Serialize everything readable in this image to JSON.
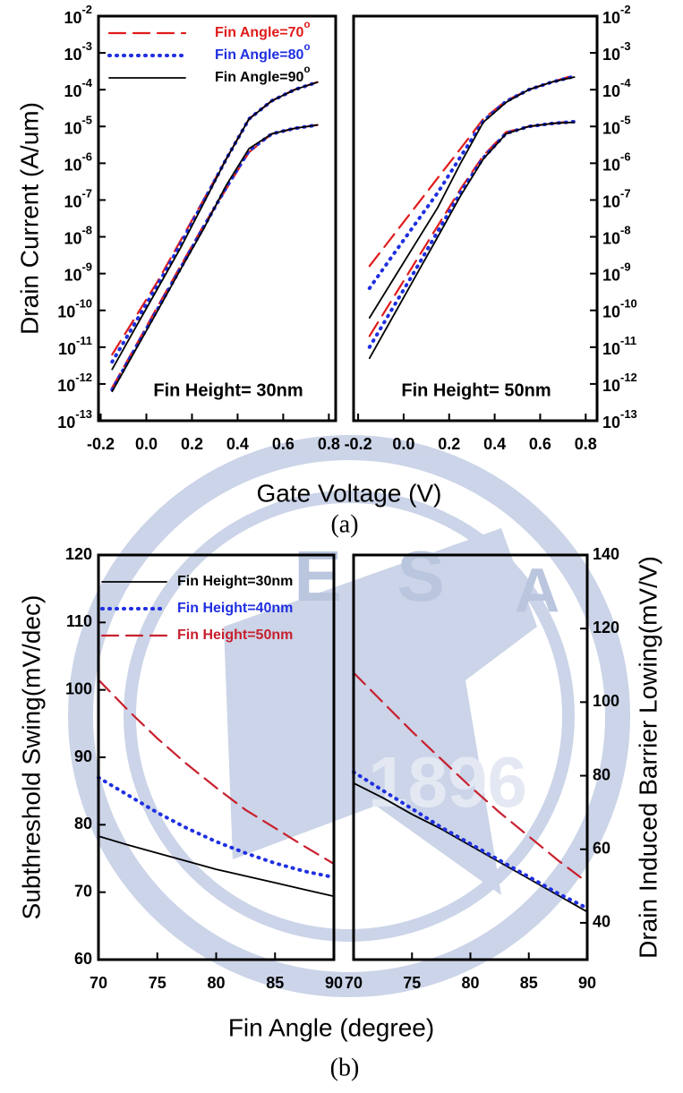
{
  "watermark": {
    "letters": [
      "E",
      "S",
      "A"
    ],
    "year": "1896"
  },
  "chart_data": [
    {
      "type": "line",
      "log_y": true,
      "ylabel": "Drain Current (A/um)",
      "xlabel": "Gate Voltage (V)",
      "caption": "(a)",
      "annotation": "Fin Height= 30nm",
      "legend": true,
      "xlim": [
        -0.21,
        0.83
      ],
      "xticks": [
        -0.2,
        {
          "value": 0,
          "label": "0.0"
        },
        0.2,
        0.4,
        0.6,
        0.8
      ],
      "ylim": [
        1e-13,
        0.01
      ],
      "yticks": [
        {
          "value": 0.01,
          "label": "10-2"
        },
        {
          "value": 0.001,
          "label": "10-3"
        },
        {
          "value": 0.0001,
          "label": "10-4"
        },
        {
          "value": 1e-05,
          "label": "10-5"
        },
        {
          "value": 1e-06,
          "label": "10-6"
        },
        {
          "value": 1e-07,
          "label": "10-7"
        },
        {
          "value": 1e-08,
          "label": "10-8"
        },
        {
          "value": 1e-09,
          "label": "10-9"
        },
        {
          "value": 1e-10,
          "label": "10-10"
        },
        {
          "value": 1e-11,
          "label": "10-11"
        },
        {
          "value": 1e-12,
          "label": "10-12"
        },
        {
          "value": 1e-13,
          "label": "10-13"
        }
      ],
      "x": [
        -0.15,
        -0.05,
        0.05,
        0.15,
        0.25,
        0.35,
        0.45,
        0.55,
        0.65,
        0.75
      ],
      "series": [
        {
          "name": "Fin Angle=70o",
          "color": "#e01b1b",
          "style": "dashed",
          "values": [
            6.3e-12,
            6.3e-11,
            6.3e-10,
            7.9e-09,
            1e-07,
            1.3e-06,
            1.6e-05,
            5e-05,
            0.0001,
            0.00016
          ],
          "values2": [
            7.9e-13,
            1e-11,
            1.3e-10,
            1.6e-09,
            2e-08,
            2e-07,
            2e-06,
            6.3e-06,
            8.9e-06,
            1.1e-05
          ]
        },
        {
          "name": "Fin Angle=80o",
          "color": "#1f2fe0",
          "style": "dotted",
          "values": [
            4e-12,
            4.5e-11,
            5e-10,
            6.3e-09,
            8.9e-08,
            1.3e-06,
            1.6e-05,
            5e-05,
            0.0001,
            0.00016
          ],
          "values2": [
            7e-13,
            8.9e-12,
            1.1e-10,
            1.4e-09,
            1.8e-08,
            2.2e-07,
            2.2e-06,
            6.3e-06,
            8.9e-06,
            1.1e-05
          ]
        },
        {
          "name": "Fin Angle=90o",
          "color": "#000000",
          "style": "solid",
          "values": [
            2.5e-12,
            3.2e-11,
            4e-10,
            5e-09,
            7.9e-08,
            1.3e-06,
            1.6e-05,
            5e-05,
            0.0001,
            0.00016
          ],
          "values2": [
            6.3e-13,
            7.9e-12,
            1e-10,
            1.3e-09,
            1.6e-08,
            2.5e-07,
            2.5e-06,
            6.3e-06,
            8.9e-06,
            1.1e-05
          ]
        }
      ]
    },
    {
      "type": "line",
      "log_y": true,
      "annotation": "Fin Height= 50nm",
      "xlim": [
        -0.22,
        0.85
      ],
      "xticks": [
        -0.2,
        {
          "value": 0,
          "label": "0.0"
        },
        0.2,
        0.4,
        0.6,
        0.8
      ],
      "ylim": [
        1e-13,
        0.01
      ],
      "yticks": [
        {
          "value": 0.01,
          "label": "10-2"
        },
        {
          "value": 0.001,
          "label": "10-3"
        },
        {
          "value": 0.0001,
          "label": "10-4"
        },
        {
          "value": 1e-05,
          "label": "10-5"
        },
        {
          "value": 1e-06,
          "label": "10-6"
        },
        {
          "value": 1e-07,
          "label": "10-7"
        },
        {
          "value": 1e-08,
          "label": "10-8"
        },
        {
          "value": 1e-09,
          "label": "10-9"
        },
        {
          "value": 1e-10,
          "label": "10-10"
        },
        {
          "value": 1e-11,
          "label": "10-11"
        },
        {
          "value": 1e-12,
          "label": "10-12"
        },
        {
          "value": 1e-13,
          "label": "10-13"
        }
      ],
      "x": [
        -0.15,
        -0.05,
        0.05,
        0.15,
        0.25,
        0.35,
        0.45,
        0.55,
        0.65,
        0.75
      ],
      "series": [
        {
          "color": "#e01b1b",
          "style": "dashed",
          "values": [
            1.6e-09,
            1e-08,
            6.3e-08,
            4e-07,
            2.5e-06,
            1.6e-05,
            5e-05,
            0.0001,
            0.00016,
            0.00025
          ],
          "values2": [
            2e-11,
            2e-10,
            2e-09,
            2e-08,
            2e-07,
            1.6e-06,
            7e-06,
            1e-05,
            1.2e-05,
            1.4e-05
          ]
        },
        {
          "color": "#1f2fe0",
          "style": "dotted",
          "values": [
            4e-10,
            3e-09,
            2.2e-08,
            1.6e-07,
            1.5e-06,
            1.4e-05,
            4.8e-05,
            0.0001,
            0.00016,
            0.00023
          ],
          "values2": [
            1e-11,
            1.1e-10,
            1.2e-09,
            1.4e-08,
            1.6e-07,
            1.4e-06,
            6.5e-06,
            1e-05,
            1.2e-05,
            1.35e-05
          ]
        },
        {
          "color": "#000000",
          "style": "solid",
          "values": [
            6.3e-11,
            6.3e-10,
            6.3e-09,
            6.3e-08,
            1e-06,
            1.3e-05,
            4.5e-05,
            0.0001,
            0.00016,
            0.00022
          ],
          "values2": [
            5e-12,
            6.3e-11,
            7.9e-10,
            1e-08,
            1.3e-07,
            1.3e-06,
            6.3e-06,
            1e-05,
            1.2e-05,
            1.3e-05
          ]
        }
      ]
    },
    {
      "type": "line",
      "ylabel": "Subthreshold Swing(mV/dec)",
      "xlabel": "Fin Angle (degree)",
      "caption": "(b)",
      "legend": true,
      "xlim": [
        70,
        90
      ],
      "xticks": [
        70,
        75,
        80,
        85,
        90
      ],
      "ylim": [
        60,
        120
      ],
      "yticks": [
        60,
        70,
        80,
        90,
        100,
        110,
        120
      ],
      "x": [
        70,
        72.5,
        75,
        77.5,
        80,
        82.5,
        85,
        87.5,
        90
      ],
      "series": [
        {
          "name": "Fin Height=30nm",
          "color": "#000000",
          "style": "solid",
          "values": [
            78.3,
            77.0,
            75.8,
            74.6,
            73.4,
            72.4,
            71.4,
            70.4,
            69.4
          ]
        },
        {
          "name": "Fin Height=40nm",
          "color": "#1f2fe0",
          "style": "dotted",
          "values": [
            87,
            84.4,
            81.8,
            79.5,
            77.5,
            75.8,
            74.3,
            73.1,
            72.2
          ]
        },
        {
          "name": "Fin Height=50nm",
          "color": "#c8202e",
          "style": "dashed",
          "values": [
            101.5,
            97,
            92.8,
            89,
            85.5,
            82.2,
            79.5,
            76.8,
            74.2
          ]
        }
      ]
    },
    {
      "type": "line",
      "y2label": "Drain Induced Barrier Lowing(mV/V)",
      "xlim": [
        70,
        90
      ],
      "xticks": [
        70,
        75,
        80,
        85,
        90
      ],
      "y2lim": [
        30,
        140
      ],
      "y2ticks": [
        40,
        60,
        80,
        100,
        120,
        140
      ],
      "x": [
        70,
        72.5,
        75,
        77.5,
        80,
        82.5,
        85,
        87.5,
        90
      ],
      "series": [
        {
          "color": "#000000",
          "style": "solid",
          "axis": "y2",
          "values": [
            78,
            74,
            69.5,
            65.5,
            61,
            56.5,
            52,
            47.5,
            43
          ]
        },
        {
          "color": "#1f2fe0",
          "style": "dotted",
          "axis": "y2",
          "values": [
            81,
            76,
            71,
            66,
            61.5,
            57,
            52.5,
            48,
            44
          ]
        },
        {
          "color": "#c8202e",
          "style": "dashed",
          "axis": "y2",
          "values": [
            108,
            100,
            92,
            84.5,
            77,
            70,
            63.5,
            57,
            51
          ]
        }
      ]
    }
  ]
}
